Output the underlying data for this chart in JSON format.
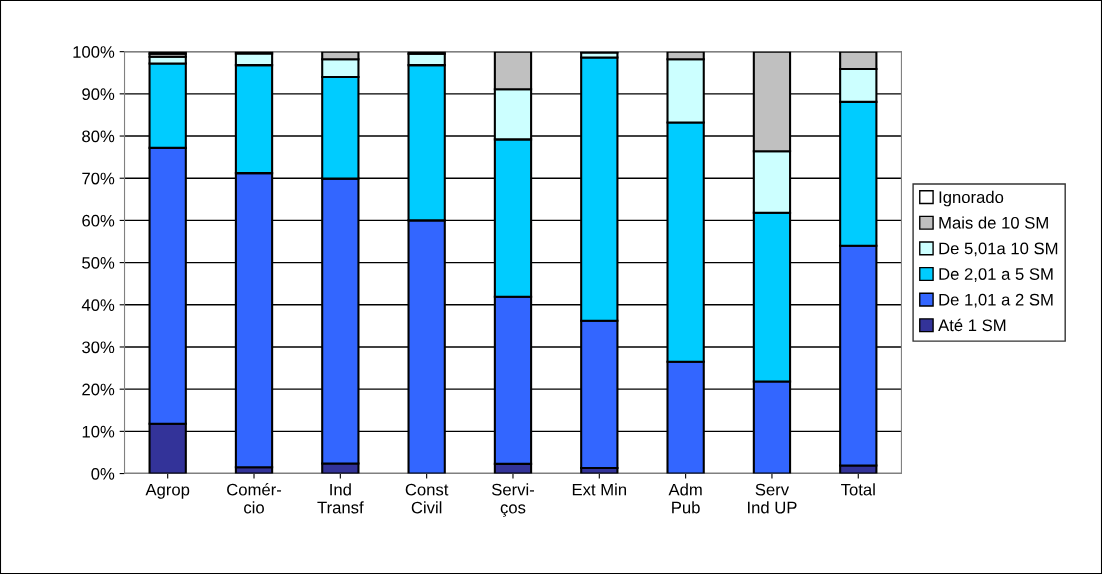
{
  "chart_data": {
    "type": "bar",
    "stacked": true,
    "categories": [
      "Agrop",
      "Comér-\ncio",
      "Ind\nTransf",
      "Const\nCivil",
      "Servi-\nços",
      "Ext Min",
      "Adm\nPub",
      "Serv\nInd UP",
      "Total"
    ],
    "series": [
      {
        "name": "Até 1 SM",
        "color": "#333399",
        "values": [
          11.8,
          1.5,
          2.4,
          null,
          2.3,
          1.3,
          0,
          0,
          1.9
        ]
      },
      {
        "name": "De 1,01 a 2 SM",
        "color": "#3366ff",
        "values": [
          65.4,
          69.7,
          67.5,
          60.0,
          39.6,
          34.9,
          26.5,
          21.8,
          52.1
        ]
      },
      {
        "name": "De 2,01 a 5 SM",
        "color": "#00ccff",
        "values": [
          20.0,
          25.6,
          24.1,
          36.8,
          37.3,
          62.4,
          56.7,
          40.0,
          34.1
        ]
      },
      {
        "name": "De 5,01a 10 SM",
        "color": "#ccffff",
        "values": [
          1.6,
          2.8,
          4.2,
          2.7,
          11.9,
          1.2,
          15.0,
          14.6,
          7.8
        ]
      },
      {
        "name": "Mais de 10 SM",
        "color": "#c0c0c0",
        "values": [
          0.7,
          null,
          1.8,
          null,
          8.9,
          0.2,
          1.8,
          23.6,
          4.1
        ]
      },
      {
        "name": "Ignorado",
        "color": "#ffffff",
        "values": [
          0.5,
          0.4,
          0,
          0.5,
          0,
          0,
          0,
          0,
          0
        ]
      }
    ],
    "ylim": [
      0,
      100
    ],
    "yticks": [
      {
        "value": 0,
        "label": "0%"
      },
      {
        "value": 10,
        "label": "10%"
      },
      {
        "value": 20,
        "label": "20%"
      },
      {
        "value": 30,
        "label": "30%"
      },
      {
        "value": 40,
        "label": "40%"
      },
      {
        "value": 50,
        "label": "50%"
      },
      {
        "value": 60,
        "label": "60%"
      },
      {
        "value": 70,
        "label": "70%"
      },
      {
        "value": 80,
        "label": "80%"
      },
      {
        "value": 90,
        "label": "90%"
      },
      {
        "value": 100,
        "label": "100%"
      }
    ],
    "grid": "y",
    "legend": "right"
  }
}
